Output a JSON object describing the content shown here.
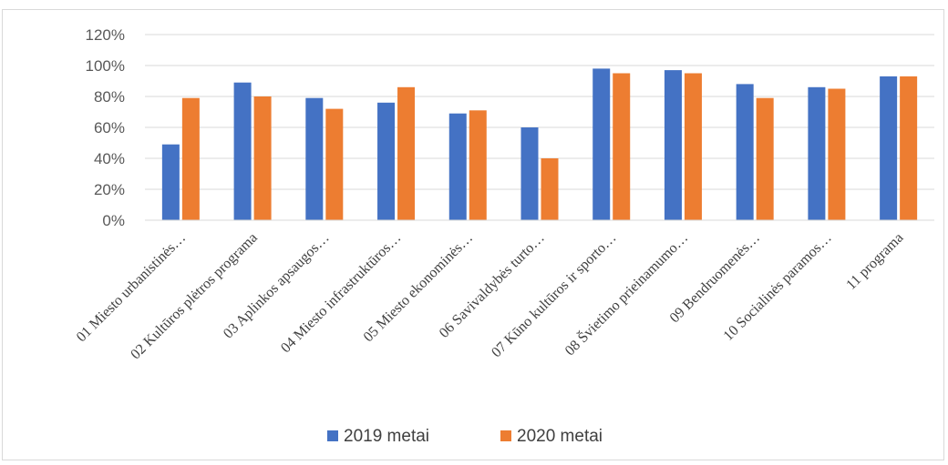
{
  "chart_data": {
    "type": "bar",
    "categories": [
      "01 Miesto urbanistinės…",
      "02 Kultūros plėtros programa",
      "03 Aplinkos apsaugos…",
      "04 Miesto infrastruktūros…",
      "05 Miesto ekonominės…",
      "06 Savivaldybės turto…",
      "07 Kūno kultūros ir sporto…",
      "08 Švietimo prieinamumo…",
      "09 Bendruomenės…",
      "10 Socialinės paramos…",
      "11 programa"
    ],
    "series": [
      {
        "name": "2019 metai",
        "color": "#4472C4",
        "values": [
          49,
          89,
          79,
          76,
          69,
          60,
          98,
          97,
          88,
          86,
          93
        ]
      },
      {
        "name": "2020 metai",
        "color": "#ED7D31",
        "values": [
          79,
          80,
          72,
          86,
          71,
          40,
          95,
          95,
          79,
          85,
          93
        ]
      }
    ],
    "y_ticks": [
      "0%",
      "20%",
      "40%",
      "60%",
      "80%",
      "100%",
      "120%"
    ],
    "ylim": [
      0,
      120
    ],
    "grid": true,
    "legend_position": "bottom"
  }
}
